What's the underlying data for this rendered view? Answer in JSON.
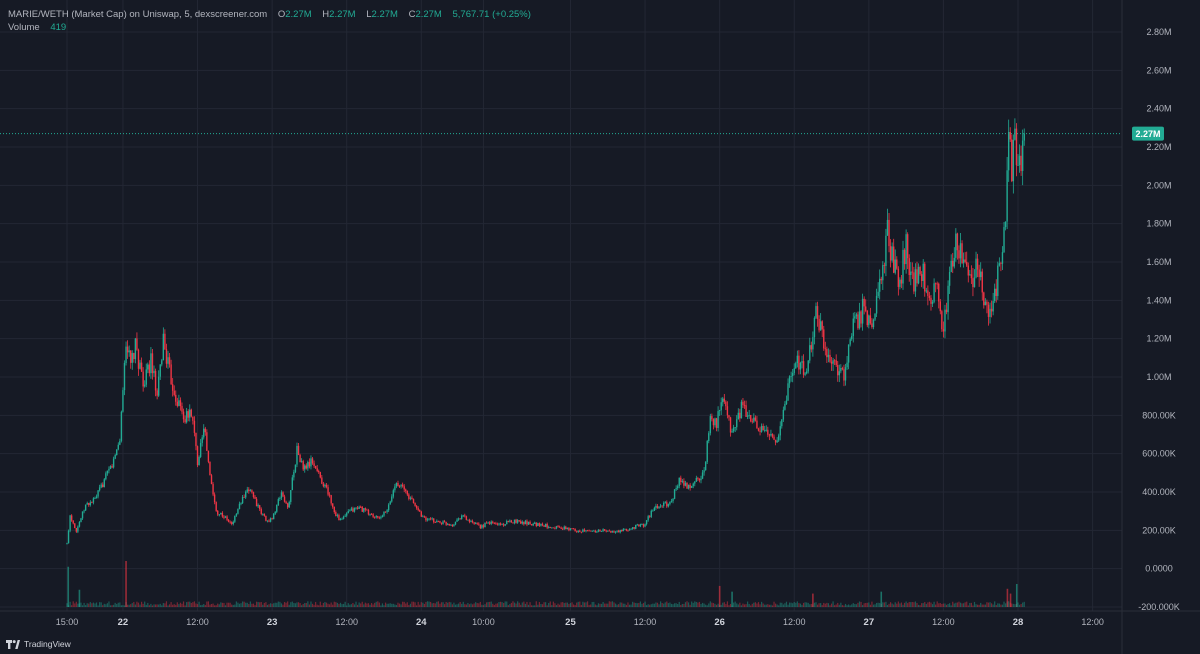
{
  "legend": {
    "symbol": "MARIE/WETH (Market Cap) on Uniswap, 5, dexscreener.com",
    "o_label": "O",
    "o_value": "2.27M",
    "h_label": "H",
    "h_value": "2.27M",
    "l_label": "L",
    "l_value": "2.27M",
    "c_label": "C",
    "c_value": "2.27M",
    "change": "5,767.71 (+0.25%)",
    "volume_label": "Volume",
    "volume_value": "419"
  },
  "current_price_label": "2.27M",
  "footer": {
    "brand": "TradingView"
  },
  "colors": {
    "background": "#161a25",
    "grid": "#232734",
    "up": "#22ab94",
    "down": "#f23645",
    "text": "#b2b5be",
    "price_tag": "#22ab94"
  },
  "chart_data": {
    "type": "candlestick",
    "y_unit": "market cap",
    "ylim": [
      -200000,
      2800000
    ],
    "y_ticks": [
      {
        "value": 2800000,
        "label": "2.80M"
      },
      {
        "value": 2600000,
        "label": "2.60M"
      },
      {
        "value": 2400000,
        "label": "2.40M"
      },
      {
        "value": 2200000,
        "label": "2.20M"
      },
      {
        "value": 2000000,
        "label": "2.00M"
      },
      {
        "value": 1800000,
        "label": "1.80M"
      },
      {
        "value": 1600000,
        "label": "1.60M"
      },
      {
        "value": 1400000,
        "label": "1.40M"
      },
      {
        "value": 1200000,
        "label": "1.20M"
      },
      {
        "value": 1000000,
        "label": "1.00M"
      },
      {
        "value": 800000,
        "label": "800.00K"
      },
      {
        "value": 600000,
        "label": "600.00K"
      },
      {
        "value": 400000,
        "label": "400.00K"
      },
      {
        "value": 200000,
        "label": "200.00K"
      },
      {
        "value": 0,
        "label": "0.0000"
      },
      {
        "value": -200000,
        "label": "-200.000K"
      }
    ],
    "x_ticks": [
      {
        "hour": 15,
        "label": "15:00",
        "bold": false
      },
      {
        "hour": 24,
        "label": "22",
        "bold": true
      },
      {
        "hour": 36,
        "label": "12:00",
        "bold": false
      },
      {
        "hour": 48,
        "label": "23",
        "bold": true
      },
      {
        "hour": 60,
        "label": "12:00",
        "bold": false
      },
      {
        "hour": 72,
        "label": "24",
        "bold": true
      },
      {
        "hour": 82,
        "label": "10:00",
        "bold": false
      },
      {
        "hour": 96,
        "label": "25",
        "bold": true
      },
      {
        "hour": 108,
        "label": "12:00",
        "bold": false
      },
      {
        "hour": 120,
        "label": "26",
        "bold": true
      },
      {
        "hour": 132,
        "label": "12:00",
        "bold": false
      },
      {
        "hour": 144,
        "label": "27",
        "bold": true
      },
      {
        "hour": 156,
        "label": "12:00",
        "bold": false
      },
      {
        "hour": 168,
        "label": "28",
        "bold": true
      },
      {
        "hour": 180,
        "label": "12:00",
        "bold": false
      }
    ],
    "x_range_hours": [
      15,
      183
    ],
    "current_price": 2270000,
    "path": [
      [
        15.0,
        130000
      ],
      [
        15.5,
        280000
      ],
      [
        16.5,
        200000
      ],
      [
        18,
        330000
      ],
      [
        19.5,
        360000
      ],
      [
        21,
        460000
      ],
      [
        22.5,
        560000
      ],
      [
        23.5,
        680000
      ],
      [
        24.5,
        1200000
      ],
      [
        25.2,
        1050000
      ],
      [
        26,
        1150000
      ],
      [
        27.5,
        960000
      ],
      [
        28.5,
        1100000
      ],
      [
        29.5,
        880000
      ],
      [
        30.5,
        1200000
      ],
      [
        31.5,
        1020000
      ],
      [
        32.5,
        900000
      ],
      [
        34,
        780000
      ],
      [
        35,
        820000
      ],
      [
        36,
        560000
      ],
      [
        37,
        760000
      ],
      [
        38,
        480000
      ],
      [
        39,
        300000
      ],
      [
        40,
        280000
      ],
      [
        41.5,
        230000
      ],
      [
        43,
        350000
      ],
      [
        44.5,
        420000
      ],
      [
        46,
        300000
      ],
      [
        47.5,
        240000
      ],
      [
        48.5,
        300000
      ],
      [
        49.5,
        400000
      ],
      [
        50.5,
        310000
      ],
      [
        52,
        620000
      ],
      [
        53,
        520000
      ],
      [
        54.5,
        560000
      ],
      [
        56,
        460000
      ],
      [
        57,
        400000
      ],
      [
        58,
        300000
      ],
      [
        59,
        250000
      ],
      [
        60.5,
        300000
      ],
      [
        62,
        320000
      ],
      [
        63.5,
        290000
      ],
      [
        65,
        260000
      ],
      [
        66.5,
        300000
      ],
      [
        68,
        460000
      ],
      [
        69.5,
        400000
      ],
      [
        71,
        330000
      ],
      [
        72.5,
        260000
      ],
      [
        74,
        250000
      ],
      [
        75.5,
        240000
      ],
      [
        77,
        230000
      ],
      [
        78.5,
        280000
      ],
      [
        80,
        240000
      ],
      [
        81.5,
        220000
      ],
      [
        83,
        240000
      ],
      [
        85,
        230000
      ],
      [
        87,
        250000
      ],
      [
        89,
        240000
      ],
      [
        91,
        230000
      ],
      [
        93,
        220000
      ],
      [
        95,
        210000
      ],
      [
        97,
        200000
      ],
      [
        99,
        195000
      ],
      [
        101,
        200000
      ],
      [
        103,
        190000
      ],
      [
        105,
        200000
      ],
      [
        106.5,
        220000
      ],
      [
        108,
        230000
      ],
      [
        109,
        300000
      ],
      [
        110.5,
        330000
      ],
      [
        112,
        340000
      ],
      [
        113.5,
        460000
      ],
      [
        115,
        420000
      ],
      [
        116.5,
        470000
      ],
      [
        117.5,
        500000
      ],
      [
        118.5,
        800000
      ],
      [
        119.5,
        760000
      ],
      [
        120.5,
        880000
      ],
      [
        122,
        700000
      ],
      [
        123.5,
        840000
      ],
      [
        125,
        780000
      ],
      [
        126.5,
        720000
      ],
      [
        128,
        700000
      ],
      [
        129.5,
        680000
      ],
      [
        131,
        950000
      ],
      [
        132.5,
        1100000
      ],
      [
        134,
        1000000
      ],
      [
        135.5,
        1350000
      ],
      [
        137,
        1150000
      ],
      [
        138.5,
        1080000
      ],
      [
        140,
        1000000
      ],
      [
        141.5,
        1250000
      ],
      [
        143,
        1350000
      ],
      [
        144.5,
        1250000
      ],
      [
        146,
        1550000
      ],
      [
        147,
        1750000
      ],
      [
        148,
        1600000
      ],
      [
        149,
        1500000
      ],
      [
        150,
        1700000
      ],
      [
        151,
        1500000
      ],
      [
        152.5,
        1550000
      ],
      [
        154,
        1420000
      ],
      [
        155,
        1480000
      ],
      [
        156,
        1250000
      ],
      [
        157,
        1500000
      ],
      [
        158,
        1750000
      ],
      [
        159,
        1600000
      ],
      [
        160.5,
        1500000
      ],
      [
        161.5,
        1600000
      ],
      [
        162.5,
        1380000
      ],
      [
        163.5,
        1320000
      ],
      [
        164.5,
        1450000
      ],
      [
        165.2,
        1650000
      ],
      [
        166,
        1850000
      ],
      [
        166.5,
        2300000
      ],
      [
        167,
        2100000
      ],
      [
        167.5,
        2200000
      ],
      [
        168,
        2050000
      ],
      [
        168.5,
        2150000
      ],
      [
        169,
        2270000
      ]
    ],
    "volume_spikes": [
      {
        "hour": 15.2,
        "value": 210000
      },
      {
        "hour": 24.5,
        "value": 240000
      },
      {
        "hour": 17,
        "value": 90000
      },
      {
        "hour": 120,
        "value": 110000
      },
      {
        "hour": 122,
        "value": 80000
      },
      {
        "hour": 135,
        "value": 70000
      },
      {
        "hour": 146,
        "value": 80000
      },
      {
        "hour": 166.3,
        "value": 95000
      },
      {
        "hour": 167.8,
        "value": 120000
      },
      {
        "hour": 166.8,
        "value": 70000
      }
    ]
  }
}
